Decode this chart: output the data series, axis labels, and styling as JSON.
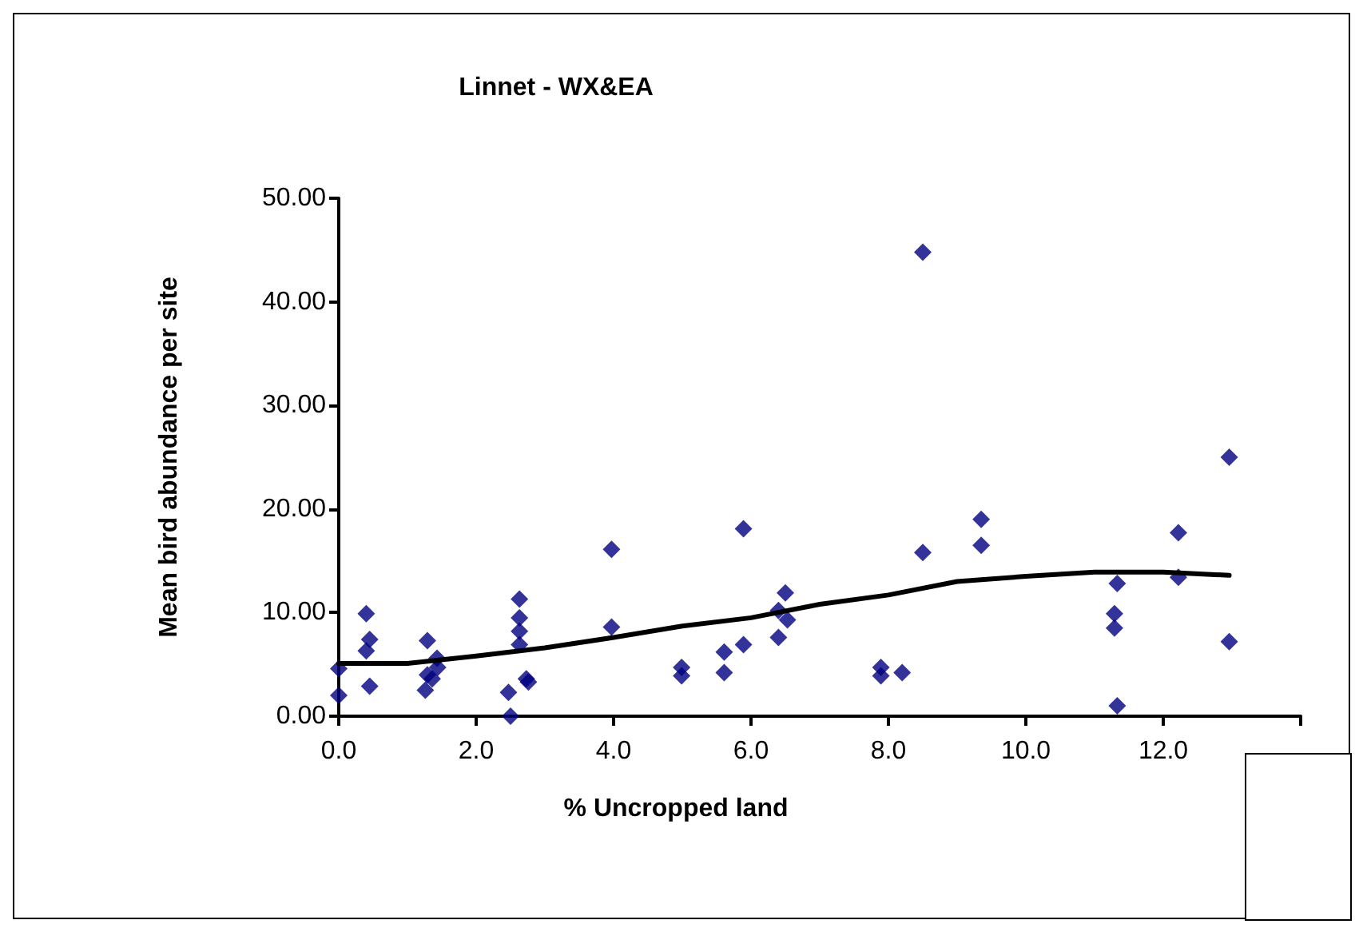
{
  "chart_data": {
    "type": "scatter",
    "title": "Linnet - WX&EA",
    "xlabel": "% Uncropped land",
    "ylabel": "Mean bird abundance per site",
    "xlim": [
      0,
      14
    ],
    "xticks": [
      {
        "value": 0,
        "label": "0.0"
      },
      {
        "value": 2,
        "label": "2.0"
      },
      {
        "value": 4,
        "label": "4.0"
      },
      {
        "value": 6,
        "label": "6.0"
      },
      {
        "value": 8,
        "label": "8.0"
      },
      {
        "value": 10,
        "label": "10.0"
      },
      {
        "value": 12,
        "label": "12.0"
      },
      {
        "value": 14,
        "label": null
      }
    ],
    "ylim": [
      0,
      50
    ],
    "yticks": [
      {
        "value": 0,
        "label": "0.00"
      },
      {
        "value": 10,
        "label": "10.00"
      },
      {
        "value": 20,
        "label": "20.00"
      },
      {
        "value": 30,
        "label": "30.00"
      },
      {
        "value": 40,
        "label": "40.00"
      },
      {
        "value": 50,
        "label": "50.00"
      }
    ],
    "grid": false,
    "marker": "diamond",
    "series": [
      {
        "color": "#000080",
        "x": [
          0,
          0,
          0.4,
          0.45,
          0.4,
          0.45,
          1.29,
          1.29,
          1.26,
          1.43,
          1.44,
          1.36,
          2.63,
          2.63,
          2.63,
          2.63,
          2.47,
          2.5,
          2.73,
          2.76,
          3.97,
          3.97,
          4.99,
          4.99,
          5.61,
          5.61,
          5.89,
          5.89,
          6.5,
          6.4,
          6.53,
          6.4,
          8.5,
          8.5,
          9.35,
          9.35,
          7.89,
          7.89,
          8.2,
          11.33,
          11.29,
          11.29,
          11.33,
          12.22,
          12.22,
          12.96,
          12.96
        ],
        "values": [
          4.6,
          2.0,
          9.9,
          7.4,
          6.3,
          2.9,
          7.3,
          4.0,
          2.5,
          5.6,
          4.7,
          3.6,
          11.3,
          9.5,
          8.2,
          6.9,
          2.3,
          0,
          3.6,
          3.3,
          16.1,
          8.6,
          4.7,
          3.9,
          6.2,
          4.2,
          18.1,
          6.9,
          11.9,
          10.2,
          9.3,
          7.6,
          44.8,
          15.8,
          19.0,
          16.5,
          4.7,
          3.9,
          4.2,
          12.8,
          9.9,
          8.5,
          1.0,
          17.7,
          13.4,
          25.0,
          7.2
        ]
      },
      {
        "type": "line",
        "color": "#000000",
        "marker": "none",
        "line_style": "solid",
        "x": [
          0,
          1,
          2,
          3,
          4,
          5,
          6,
          7,
          8,
          9,
          10,
          11,
          12,
          12.96
        ],
        "values": [
          5.1,
          5.1,
          5.8,
          6.6,
          7.6,
          8.7,
          9.5,
          10.8,
          11.7,
          13.0,
          13.5,
          13.9,
          13.9,
          13.6
        ]
      }
    ]
  }
}
